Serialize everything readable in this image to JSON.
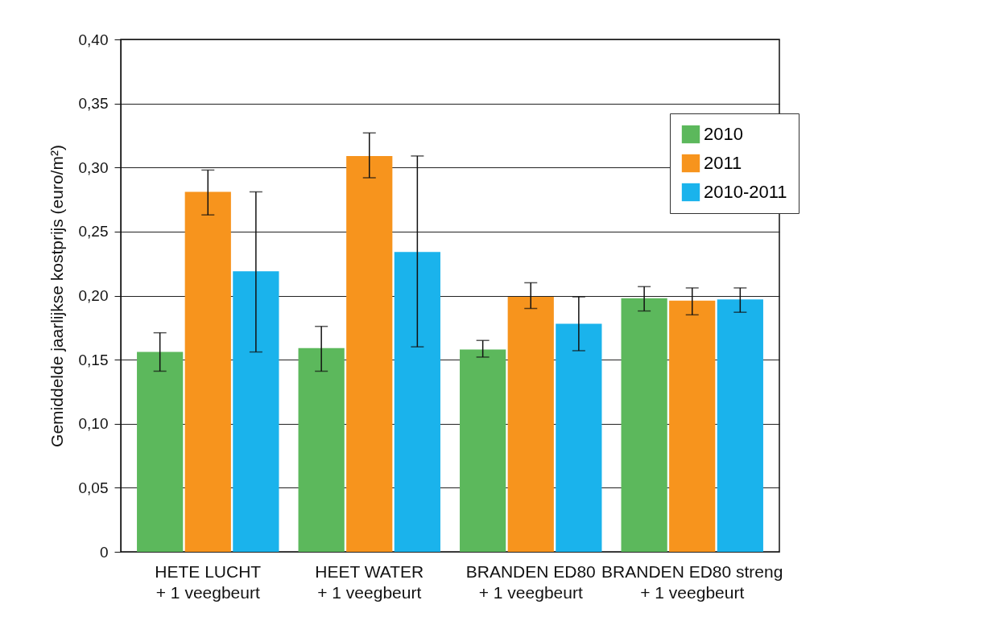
{
  "chart_data": {
    "type": "bar",
    "ylabel": "Gemiddelde jaarlijkse kostprijs (euro/m²)",
    "categories": [
      "HETE LUCHT\n+ 1 veegbeurt",
      "HEET WATER\n+ 1 veegbeurt",
      "BRANDEN ED80\n+ 1 veegbeurt",
      "BRANDEN ED80 streng\n+ 1 veegbeurt"
    ],
    "series": [
      {
        "name": "2010",
        "color": "#5cb85c",
        "values": [
          0.156,
          0.159,
          0.158,
          0.198
        ],
        "errors": [
          [
            0.141,
            0.171
          ],
          [
            0.141,
            0.176
          ],
          [
            0.152,
            0.165
          ],
          [
            0.188,
            0.207
          ]
        ]
      },
      {
        "name": "2011",
        "color": "#f7941d",
        "values": [
          0.281,
          0.309,
          0.199,
          0.196
        ],
        "errors": [
          [
            0.263,
            0.298
          ],
          [
            0.292,
            0.327
          ],
          [
            0.19,
            0.21
          ],
          [
            0.185,
            0.206
          ]
        ]
      },
      {
        "name": "2010-2011",
        "color": "#1ab3ec",
        "values": [
          0.219,
          0.234,
          0.178,
          0.197
        ],
        "errors": [
          [
            0.156,
            0.281
          ],
          [
            0.16,
            0.309
          ],
          [
            0.157,
            0.199
          ],
          [
            0.187,
            0.206
          ]
        ]
      }
    ],
    "ylim": [
      0,
      0.4
    ],
    "yticks": [
      0,
      {
        "value": 0.05,
        "label": "0,05"
      },
      {
        "value": 0.1,
        "label": "0,10"
      },
      {
        "value": 0.15,
        "label": "0,15"
      },
      {
        "value": 0.2,
        "label": "0,20"
      },
      {
        "value": 0.25,
        "label": "0,25"
      },
      {
        "value": 0.3,
        "label": "0,30"
      },
      {
        "value": 0.35,
        "label": "0,35"
      },
      {
        "value": 0.4,
        "label": "0,40"
      }
    ],
    "grid": "y",
    "legend": "top right"
  }
}
